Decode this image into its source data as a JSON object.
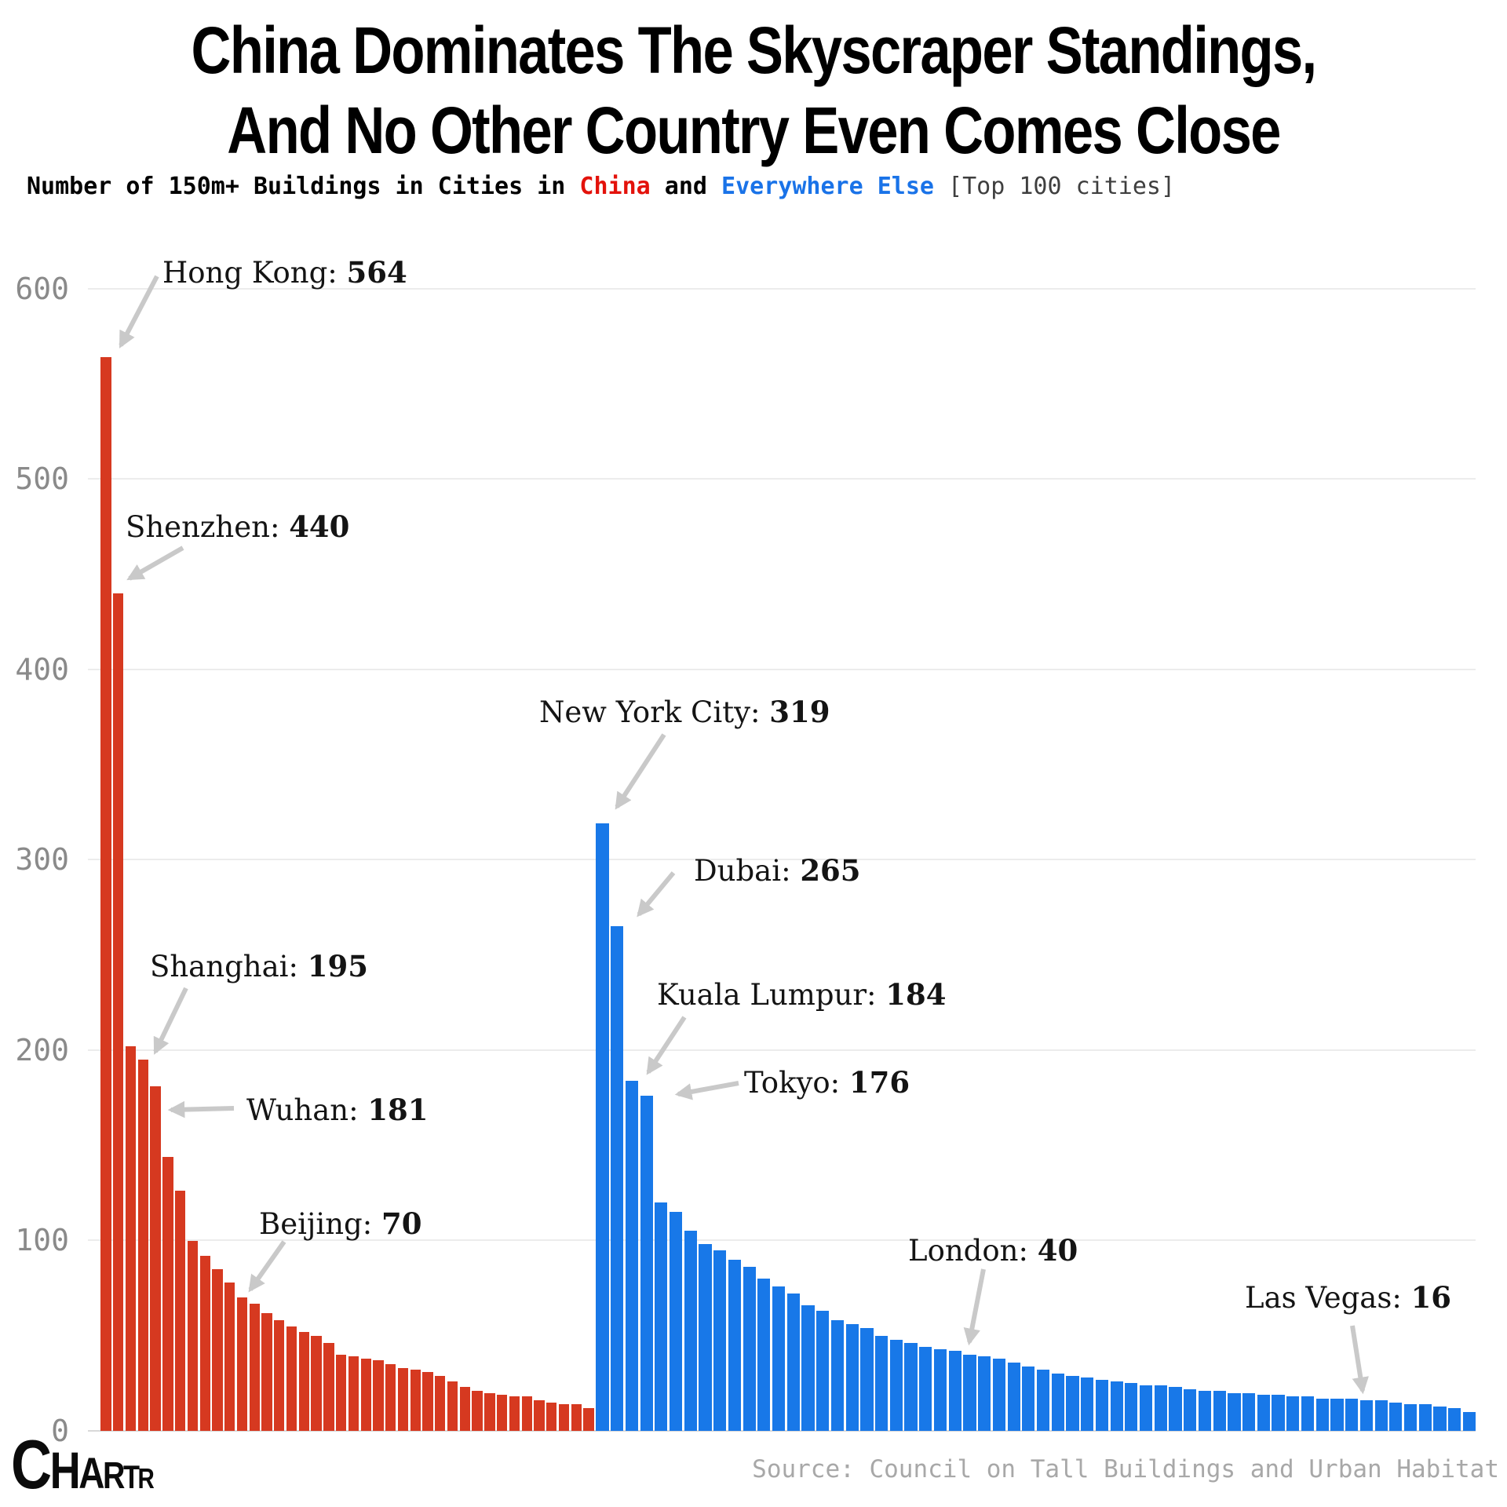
{
  "title": {
    "line1": "China Dominates The Skyscraper Standings,",
    "line2": "And No Other Country Even Comes Close"
  },
  "subtitle": {
    "prefix": "Number of 150m+ Buildings in Cities in ",
    "china_label": "China",
    "mid": " and ",
    "else_label": "Everywhere Else",
    "note": " [Top 100 cities]"
  },
  "colors": {
    "china_bar": "#d63920",
    "else_bar": "#1878e8",
    "china_text": "#e3120b",
    "else_text": "#1a73e8",
    "arrow": "#c9c9c9",
    "grid": "#ececec",
    "axis": "#d8d8d8",
    "tick_label": "#8a8a8a",
    "source_text": "#a8a8a8"
  },
  "y_axis": {
    "ticks": [
      0,
      100,
      200,
      300,
      400,
      500,
      600
    ],
    "max": 600
  },
  "chart_data": {
    "type": "bar",
    "title": "China Dominates The Skyscraper Standings, And No Other Country Even Comes Close",
    "subtitle": "Number of 150m+ Buildings in Cities in China and Everywhere Else [Top 100 cities]",
    "ylabel": "Number of 150m+ buildings",
    "ylim": [
      0,
      600
    ],
    "grid": true,
    "series": [
      {
        "name": "China",
        "color": "#d63920",
        "values": [
          564,
          440,
          202,
          195,
          181,
          144,
          126,
          100,
          92,
          85,
          78,
          70,
          67,
          62,
          58,
          55,
          52,
          50,
          46,
          40,
          39,
          38,
          37,
          35,
          33,
          32,
          31,
          29,
          26,
          23,
          21,
          20,
          19,
          18,
          18,
          16,
          15,
          14,
          14,
          12
        ]
      },
      {
        "name": "Everywhere Else",
        "color": "#1878e8",
        "values": [
          319,
          265,
          184,
          176,
          120,
          115,
          105,
          98,
          95,
          90,
          86,
          80,
          76,
          72,
          66,
          63,
          58,
          56,
          54,
          50,
          48,
          46,
          44,
          43,
          42,
          40,
          39,
          38,
          36,
          34,
          32,
          30,
          29,
          28,
          27,
          26,
          25,
          24,
          24,
          23,
          22,
          21,
          21,
          20,
          20,
          19,
          19,
          18,
          18,
          17,
          17,
          17,
          16,
          16,
          15,
          14,
          14,
          13,
          12,
          10
        ]
      }
    ],
    "annotations": [
      {
        "city": "Hong Kong",
        "value": 564,
        "series": 0,
        "bar": 0
      },
      {
        "city": "Shenzhen",
        "value": 440,
        "series": 0,
        "bar": 1
      },
      {
        "city": "Shanghai",
        "value": 195,
        "series": 0,
        "bar": 3
      },
      {
        "city": "Wuhan",
        "value": 181,
        "series": 0,
        "bar": 4
      },
      {
        "city": "Beijing",
        "value": 70,
        "series": 0,
        "bar": 11
      },
      {
        "city": "New York City",
        "value": 319,
        "series": 1,
        "bar": 0
      },
      {
        "city": "Dubai",
        "value": 265,
        "series": 1,
        "bar": 1
      },
      {
        "city": "Kuala Lumpur",
        "value": 184,
        "series": 1,
        "bar": 2
      },
      {
        "city": "Tokyo",
        "value": 176,
        "series": 1,
        "bar": 3
      },
      {
        "city": "London",
        "value": 40,
        "series": 1,
        "bar": 25
      },
      {
        "city": "Las Vegas",
        "value": 16,
        "series": 1,
        "bar": 52
      }
    ]
  },
  "logo": {
    "letters": [
      "C",
      "H",
      "A",
      "R",
      "T",
      "R"
    ]
  },
  "source": "Source: Council on Tall Buildings and Urban Habitat"
}
